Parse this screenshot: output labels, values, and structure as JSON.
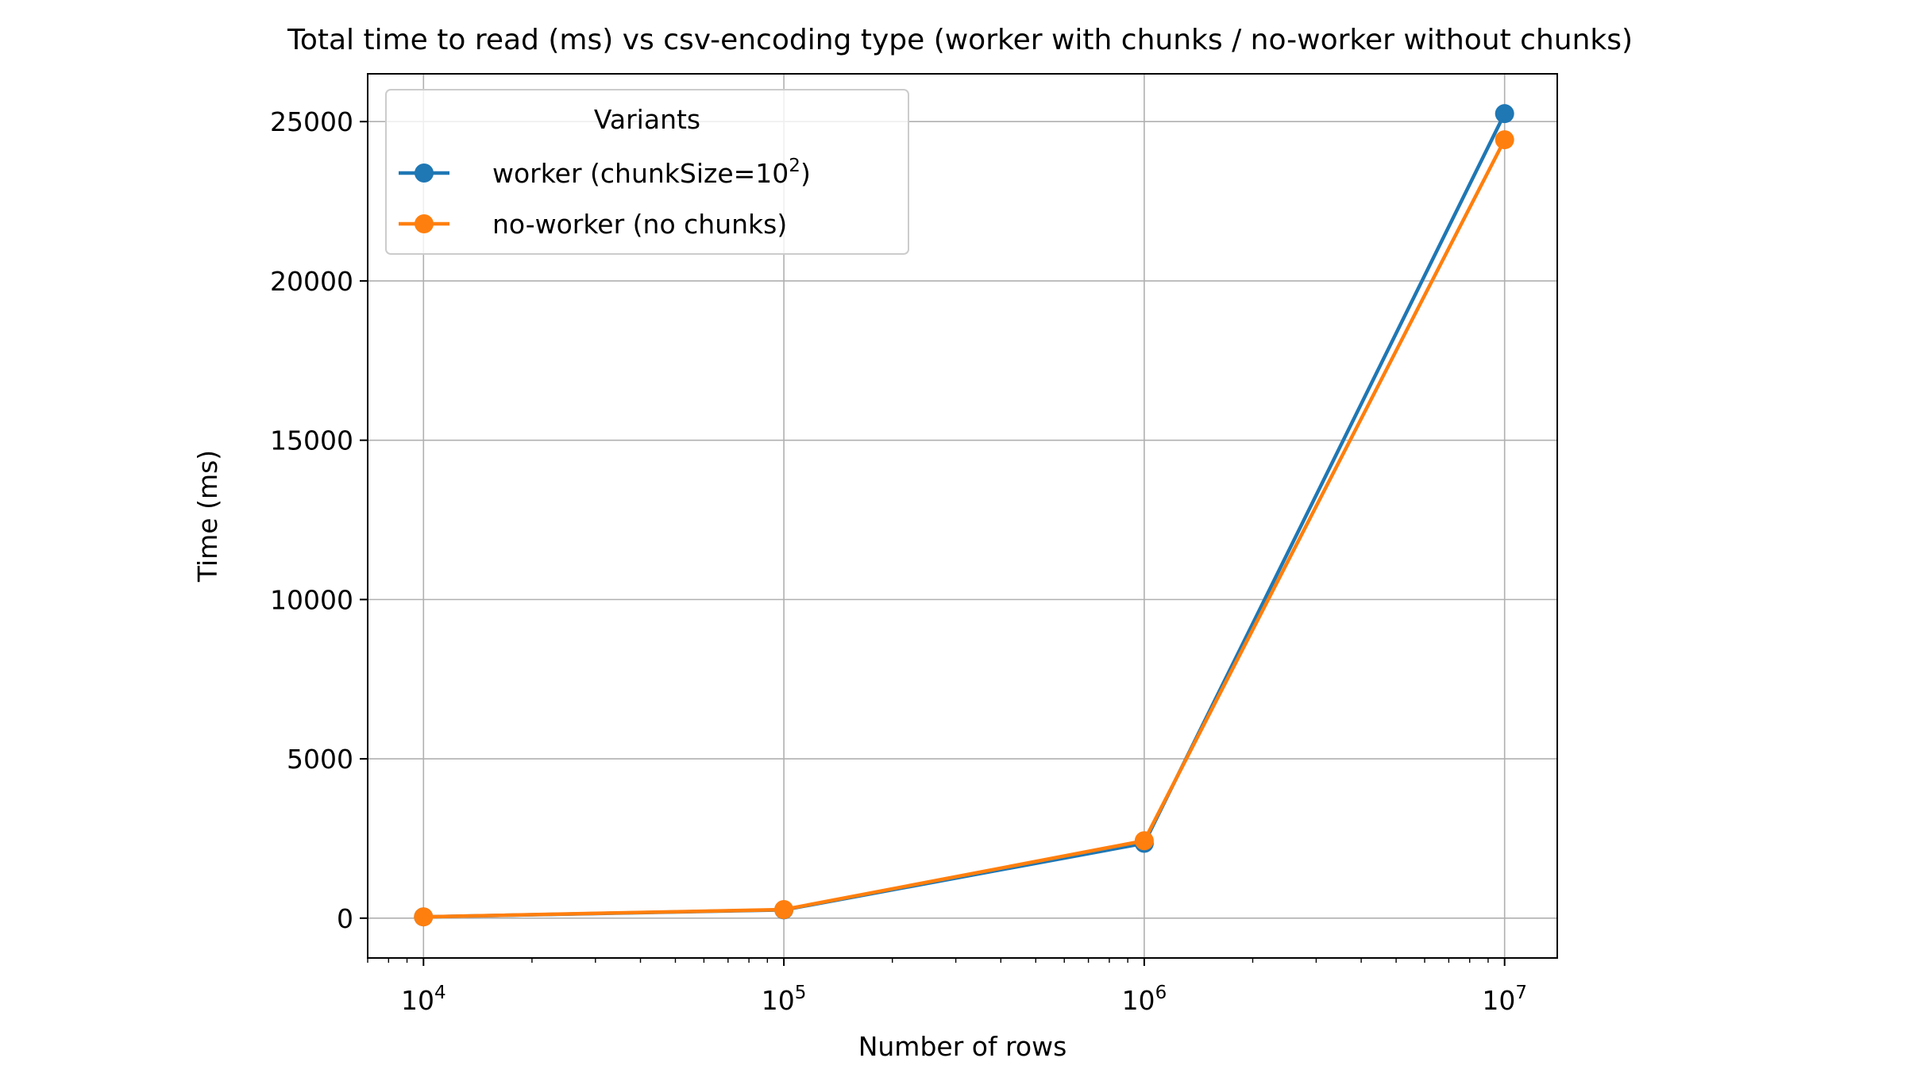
{
  "chart_data": {
    "type": "line",
    "title": "Total time to read (ms) vs csv-encoding type (worker with chunks / no-worker without chunks)",
    "xlabel": "Number of rows",
    "ylabel": "Time (ms)",
    "x_scale": "log",
    "x": [
      10000,
      100000,
      1000000,
      10000000
    ],
    "x_ticks": [
      {
        "value": 10000,
        "base": "10",
        "exp": "4"
      },
      {
        "value": 100000,
        "base": "10",
        "exp": "5"
      },
      {
        "value": 1000000,
        "base": "10",
        "exp": "6"
      },
      {
        "value": 10000000,
        "base": "10",
        "exp": "7"
      }
    ],
    "xlim": [
      7000,
      14000000
    ],
    "ylim": [
      -1250,
      26500
    ],
    "y_ticks": [
      0,
      5000,
      10000,
      15000,
      20000,
      25000
    ],
    "grid": true,
    "legend": {
      "title": "Variants",
      "position": "top-left"
    },
    "series": [
      {
        "name": "worker (chunkSize=10^2)",
        "label_main": "worker (chunkSize=10",
        "label_sup": "2",
        "label_tail": ")",
        "color": "#1f77b4",
        "values": [
          40,
          260,
          2350,
          25250
        ]
      },
      {
        "name": "no-worker (no chunks)",
        "label_main": "no-worker (no chunks)",
        "label_sup": "",
        "label_tail": "",
        "color": "#ff7f0e",
        "values": [
          40,
          270,
          2430,
          24430
        ]
      }
    ]
  }
}
